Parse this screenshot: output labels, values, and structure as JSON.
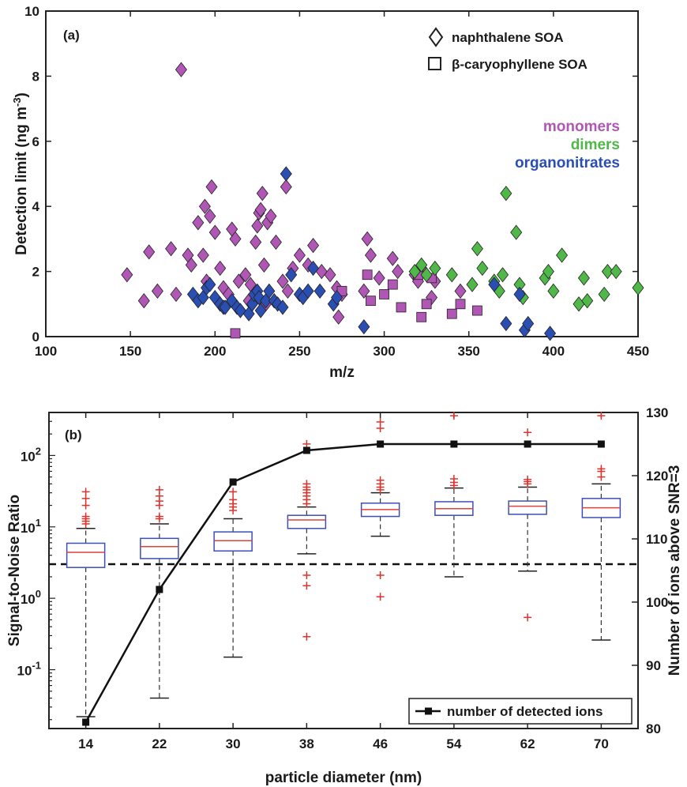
{
  "chart_data": [
    {
      "panel_label": "(a)",
      "type": "scatter",
      "xlabel": "m/z",
      "ylabel": "Detection limit (ng m",
      "ylabel_sup": "-3",
      "ylabel_suffix": ")",
      "xlim": [
        100,
        450
      ],
      "ylim": [
        0,
        10
      ],
      "xticks": [
        "100",
        "150",
        "200",
        "250",
        "300",
        "350",
        "400",
        "450"
      ],
      "yticks": [
        "0",
        "2",
        "4",
        "6",
        "8",
        "10"
      ],
      "grid": false,
      "legend_markers": [
        {
          "marker": "diamond",
          "label": "naphthalene SOA"
        },
        {
          "marker": "square",
          "label": "β-caryophyllene SOA"
        }
      ],
      "categories": [
        {
          "name": "monomers",
          "color": "#b056b5"
        },
        {
          "name": "dimers",
          "color": "#4fb848"
        },
        {
          "name": "organonitrates",
          "color": "#2b4eb3"
        }
      ],
      "series": [
        {
          "name": "monomers",
          "marker": "diamond",
          "x": [
            148,
            158,
            161,
            166,
            174,
            177,
            180,
            184,
            186,
            190,
            193,
            194,
            195,
            197,
            198,
            200,
            203,
            205,
            208,
            210,
            212,
            214,
            218,
            220,
            221,
            224,
            225,
            226,
            227,
            228,
            229,
            230,
            231,
            233,
            236,
            240,
            242,
            243,
            246,
            250,
            255,
            258,
            263,
            268,
            272,
            273,
            275,
            288,
            290,
            292,
            297,
            305,
            308,
            318,
            320,
            322,
            328,
            330,
            345
          ],
          "y": [
            1.9,
            1.1,
            2.6,
            1.4,
            2.7,
            1.3,
            8.2,
            2.5,
            2.2,
            3.5,
            2.5,
            4.0,
            1.7,
            3.7,
            4.6,
            3.2,
            2.1,
            1.5,
            1.3,
            3.3,
            3.0,
            1.7,
            1.9,
            1.1,
            1.6,
            2.9,
            3.4,
            3.8,
            3.9,
            4.4,
            2.2,
            1.0,
            3.5,
            3.7,
            2.9,
            1.7,
            4.6,
            1.4,
            2.1,
            2.5,
            2.2,
            2.8,
            2.0,
            1.9,
            1.5,
            0.6,
            1.3,
            1.4,
            3.0,
            2.5,
            1.8,
            2.4,
            2.0,
            1.9,
            1.7,
            2.1,
            1.2,
            1.7,
            1.4
          ]
        },
        {
          "name": "monomers",
          "marker": "square",
          "x": [
            275,
            290,
            292,
            300,
            305,
            320,
            322,
            325,
            328,
            340,
            345,
            355,
            310,
            212
          ],
          "y": [
            1.4,
            1.9,
            1.1,
            1.3,
            1.6,
            1.9,
            0.6,
            1.0,
            1.8,
            0.7,
            1.0,
            0.8,
            0.9,
            0.1
          ]
        },
        {
          "name": "dimers",
          "marker": "diamond",
          "x": [
            318,
            322,
            325,
            330,
            340,
            352,
            355,
            358,
            365,
            368,
            370,
            372,
            378,
            380,
            382,
            395,
            397,
            400,
            405,
            415,
            418,
            420,
            430,
            432,
            437,
            450
          ],
          "y": [
            2.0,
            2.2,
            1.9,
            2.1,
            1.9,
            1.6,
            2.7,
            2.1,
            1.7,
            1.4,
            1.9,
            4.4,
            3.2,
            1.6,
            1.2,
            1.8,
            2.0,
            1.4,
            2.5,
            1.0,
            1.8,
            1.1,
            1.3,
            2.0,
            2.0,
            1.5
          ]
        },
        {
          "name": "organonitrates",
          "marker": "diamond",
          "x": [
            187,
            190,
            193,
            195,
            197,
            200,
            203,
            205,
            206,
            210,
            213,
            215,
            220,
            222,
            223,
            225,
            226,
            227,
            230,
            232,
            235,
            237,
            240,
            242,
            245,
            250,
            252,
            255,
            258,
            262,
            270,
            272,
            288,
            365,
            372,
            380,
            383,
            385,
            398
          ],
          "y": [
            1.3,
            1.1,
            1.2,
            1.5,
            1.6,
            1.2,
            1.0,
            0.9,
            0.9,
            1.1,
            0.9,
            0.8,
            0.7,
            1.0,
            1.3,
            1.4,
            1.2,
            0.8,
            1.1,
            1.4,
            1.1,
            1.0,
            0.9,
            5.0,
            1.9,
            1.3,
            1.2,
            1.4,
            2.1,
            1.4,
            1.0,
            1.2,
            0.3,
            1.6,
            0.4,
            1.3,
            0.2,
            0.4,
            0.1
          ]
        }
      ]
    },
    {
      "panel_label": "(b)",
      "type": "box",
      "xlabel": "particle diameter (nm)",
      "ylabel": "Signal-to-Noise Ratio",
      "ylabel_right": "Number of ions above SNR=3",
      "categories": [
        "14",
        "22",
        "30",
        "38",
        "46",
        "54",
        "62",
        "70"
      ],
      "y_scale": "log",
      "ylim": [
        0.015,
        400
      ],
      "yticks": [
        {
          "base": "10",
          "exp": "-1",
          "value": 0.1
        },
        {
          "base": "10",
          "exp": "0",
          "value": 1
        },
        {
          "base": "10",
          "exp": "1",
          "value": 10
        },
        {
          "base": "10",
          "exp": "2",
          "value": 100
        }
      ],
      "y2lim": [
        80,
        130
      ],
      "y2ticks": [
        "80",
        "90",
        "100",
        "110",
        "120",
        "130"
      ],
      "threshold": 3,
      "boxes": [
        {
          "whisker_low": 0.022,
          "q1": 2.7,
          "median": 4.4,
          "q3": 5.9,
          "whisker_high": 9.5,
          "outliers": [
            11,
            12,
            13,
            14,
            20,
            25,
            31
          ]
        },
        {
          "whisker_low": 0.04,
          "q1": 3.6,
          "median": 5.3,
          "q3": 6.9,
          "whisker_high": 11,
          "outliers": [
            13,
            14,
            20,
            23,
            27,
            33
          ]
        },
        {
          "whisker_low": 0.15,
          "q1": 4.6,
          "median": 6.4,
          "q3": 8.5,
          "whisker_high": 13,
          "outliers": [
            17,
            19,
            21,
            24,
            31
          ]
        },
        {
          "whisker_low": 4.2,
          "q1": 9.5,
          "median": 12.5,
          "q3": 14.5,
          "whisker_high": 19,
          "outliers": [
            21,
            24,
            27,
            30,
            33,
            36,
            40,
            145,
            2.1,
            1.5,
            0.29
          ]
        },
        {
          "whisker_low": 7.4,
          "q1": 14,
          "median": 17.5,
          "q3": 21.5,
          "whisker_high": 30,
          "outliers": [
            33,
            36,
            40,
            45,
            240,
            295,
            2.1,
            1.05
          ]
        },
        {
          "whisker_low": 2.0,
          "q1": 14.5,
          "median": 18,
          "q3": 22.5,
          "whisker_high": 35,
          "outliers": [
            38,
            42,
            47,
            360
          ]
        },
        {
          "whisker_low": 2.4,
          "q1": 15,
          "median": 19.5,
          "q3": 23,
          "whisker_high": 36,
          "outliers": [
            40,
            43,
            46,
            210,
            0.54
          ]
        },
        {
          "whisker_low": 0.26,
          "q1": 13.5,
          "median": 18.5,
          "q3": 25,
          "whisker_high": 40,
          "outliers": [
            50,
            60,
            65,
            360
          ]
        }
      ],
      "line_series": {
        "name": "number of detected ions",
        "x": [
          "14",
          "22",
          "30",
          "38",
          "46",
          "54",
          "62",
          "70"
        ],
        "y": [
          81,
          102,
          119,
          124,
          125,
          125,
          125,
          125
        ]
      },
      "legend_position": "bottom-right"
    }
  ]
}
